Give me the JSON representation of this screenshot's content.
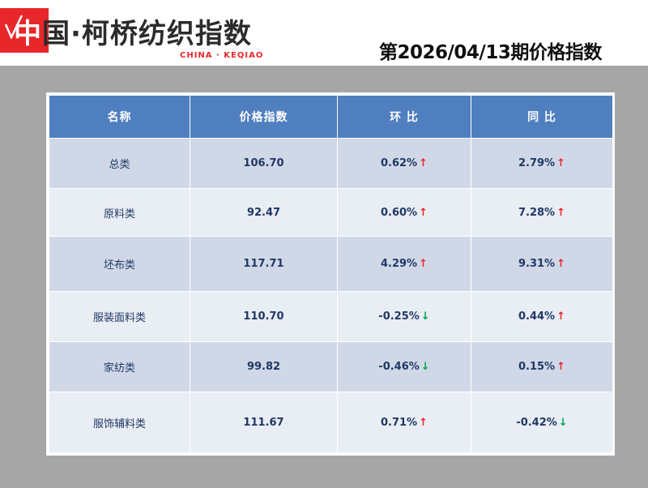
{
  "header": {
    "logo_first_char": "中",
    "logo_rest": "国·柯桥纺织指数",
    "logo_subtitle": "CHINA · KEQIAO",
    "period_title": "第2026/04/13期价格指数"
  },
  "table": {
    "columns": [
      "名称",
      "价格指数",
      "环 比",
      "同 比"
    ],
    "rows": [
      {
        "name": "总类",
        "index": "106.70",
        "mom": "0.62%",
        "mom_dir": "up",
        "yoy": "2.79%",
        "yoy_dir": "up"
      },
      {
        "name": "原料类",
        "index": "92.47",
        "mom": "0.60%",
        "mom_dir": "up",
        "yoy": "7.28%",
        "yoy_dir": "up"
      },
      {
        "name": "坯布类",
        "index": "117.71",
        "mom": "4.29%",
        "mom_dir": "up",
        "yoy": "9.31%",
        "yoy_dir": "up"
      },
      {
        "name": "服装面料类",
        "index": "110.70",
        "mom": "-0.25%",
        "mom_dir": "down",
        "yoy": "0.44%",
        "yoy_dir": "up"
      },
      {
        "name": "家纺类",
        "index": "99.82",
        "mom": "-0.46%",
        "mom_dir": "down",
        "yoy": "0.15%",
        "yoy_dir": "up"
      },
      {
        "name": "服饰辅料类",
        "index": "111.67",
        "mom": "0.71%",
        "mom_dir": "up",
        "yoy": "-0.42%",
        "yoy_dir": "down"
      }
    ]
  },
  "arrows": {
    "up": "↑",
    "down": "↓"
  },
  "colors": {
    "brand_red": "#e8272a",
    "header_blue": "#4f7fbf",
    "up": "#e8272a",
    "down": "#00a651"
  }
}
